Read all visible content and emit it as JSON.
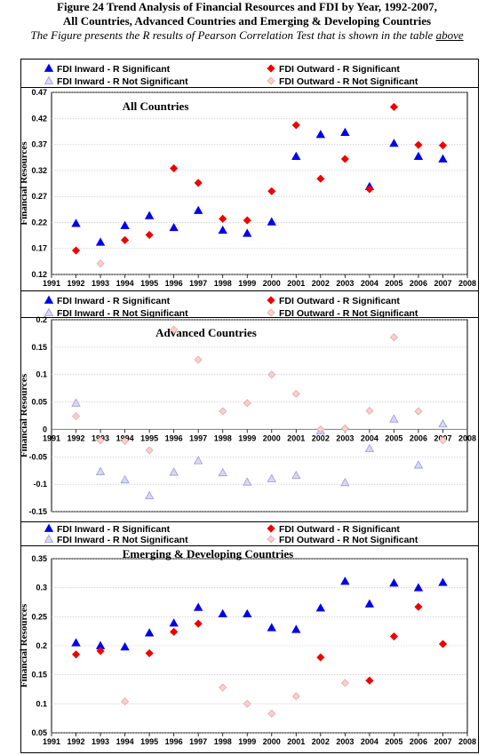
{
  "figure": {
    "title_line1": "Figure 24 Trend Analysis of Financial Resources and FDI by Year, 1992-2007,",
    "title_line2": "All Countries, Advanced Countries and Emerging & Developing Countries",
    "caption": "The Figure presents the R results of Pearson Correlation Test that is shown in the table",
    "caption_link": "above"
  },
  "colors": {
    "inward_sig": "#0000ee",
    "outward_sig": "#ee0000",
    "inward_nonsig": "#9999dd",
    "outward_nonsig": "#e8a8a8",
    "plot_bg": "#ffffff",
    "border": "#000000",
    "grid": "#c0c0c0"
  },
  "chart_data": [
    {
      "type": "scatter",
      "title": "All Countries",
      "ylabel": "Financial Resources",
      "xlabel": "",
      "xlim": [
        1991,
        2008
      ],
      "ylim": [
        0.12,
        0.47
      ],
      "yticks": [
        "0.47",
        "0.42",
        "0.37",
        "0.32",
        "0.27",
        "0.22",
        "0.17",
        "0.12"
      ],
      "xticks": [
        "1991",
        "1992",
        "1993",
        "1994",
        "1995",
        "1996",
        "1997",
        "1998",
        "1999",
        "2000",
        "2001",
        "2002",
        "2003",
        "2004",
        "2005",
        "2006",
        "2007",
        "2008"
      ],
      "grid": true,
      "legend": [
        "FDI Inward - R Significant",
        "FDI Outward - R Significant",
        "FDI Inward - R Not Significant",
        "FDI Outward - R Not Significant"
      ],
      "legend_position": "top",
      "series": [
        {
          "key": "inward_sig",
          "name": "FDI Inward - R Significant",
          "marker": "triangle",
          "points": [
            [
              1992,
              0.218
            ],
            [
              1993,
              0.182
            ],
            [
              1994,
              0.214
            ],
            [
              1995,
              0.233
            ],
            [
              1996,
              0.21
            ],
            [
              1997,
              0.243
            ],
            [
              1998,
              0.205
            ],
            [
              1999,
              0.199
            ],
            [
              2000,
              0.221
            ],
            [
              2001,
              0.347
            ],
            [
              2002,
              0.389
            ],
            [
              2003,
              0.393
            ],
            [
              2004,
              0.289
            ],
            [
              2005,
              0.372
            ],
            [
              2006,
              0.347
            ],
            [
              2007,
              0.342
            ]
          ]
        },
        {
          "key": "outward_sig",
          "name": "FDI Outward - R Significant",
          "marker": "diamond",
          "points": [
            [
              1992,
              0.166
            ],
            [
              1993,
              null
            ],
            [
              1994,
              0.186
            ],
            [
              1995,
              0.196
            ],
            [
              1996,
              0.324
            ],
            [
              1997,
              0.296
            ],
            [
              1998,
              0.227
            ],
            [
              1999,
              0.224
            ],
            [
              2000,
              0.28
            ],
            [
              2001,
              0.407
            ],
            [
              2002,
              0.304
            ],
            [
              2003,
              0.342
            ],
            [
              2004,
              0.284
            ],
            [
              2005,
              0.442
            ],
            [
              2006,
              0.369
            ],
            [
              2007,
              0.368
            ]
          ]
        },
        {
          "key": "inward_nonsig",
          "name": "FDI Inward - R Not Significant",
          "marker": "triangle",
          "points": []
        },
        {
          "key": "outward_nonsig",
          "name": "FDI Outward - R Not Significant",
          "marker": "diamond",
          "points": [
            [
              1993,
              0.141
            ]
          ]
        }
      ]
    },
    {
      "type": "scatter",
      "title": "Advanced Countries",
      "ylabel": "Financial Resources",
      "xlabel": "",
      "xlim": [
        1991,
        2008
      ],
      "ylim": [
        -0.15,
        0.2
      ],
      "yticks": [
        "0.2",
        "0.15",
        "0.1",
        "0.05",
        "0",
        "-0.05",
        "-0.1",
        "-0.15"
      ],
      "xticks": [
        "1991",
        "1992",
        "1993",
        "1994",
        "1995",
        "1996",
        "1997",
        "1998",
        "1999",
        "2000",
        "2001",
        "2002",
        "2003",
        "2004",
        "2005",
        "2006",
        "2007",
        "2008"
      ],
      "grid": true,
      "legend": [
        "FDI Inward - R Significant",
        "FDI Outward - R Significant",
        "FDI Inward - R Not Significant",
        "FDI Outward - R Not Significant"
      ],
      "legend_position": "top",
      "series": [
        {
          "key": "inward_sig",
          "name": "FDI Inward - R Significant",
          "marker": "triangle",
          "points": []
        },
        {
          "key": "outward_sig",
          "name": "FDI Outward - R Significant",
          "marker": "diamond",
          "points": []
        },
        {
          "key": "inward_nonsig",
          "name": "FDI Inward - R Not Significant",
          "marker": "triangle",
          "points": [
            [
              1992,
              0.048
            ],
            [
              1993,
              -0.077
            ],
            [
              1994,
              -0.092
            ],
            [
              1995,
              -0.121
            ],
            [
              1996,
              -0.078
            ],
            [
              1997,
              -0.057
            ],
            [
              1998,
              -0.079
            ],
            [
              1999,
              -0.096
            ],
            [
              2000,
              -0.09
            ],
            [
              2001,
              -0.084
            ],
            [
              2002,
              -0.003
            ],
            [
              2003,
              -0.097
            ],
            [
              2004,
              -0.035
            ],
            [
              2005,
              0.019
            ],
            [
              2006,
              -0.065
            ],
            [
              2007,
              0.01
            ]
          ]
        },
        {
          "key": "outward_nonsig",
          "name": "FDI Outward - R Not Significant",
          "marker": "diamond",
          "points": [
            [
              1992,
              0.024
            ],
            [
              1993,
              -0.02
            ],
            [
              1994,
              -0.021
            ],
            [
              1995,
              -0.038
            ],
            [
              1996,
              0.182
            ],
            [
              1997,
              0.127
            ],
            [
              1998,
              0.033
            ],
            [
              1999,
              0.048
            ],
            [
              2000,
              0.1
            ],
            [
              2001,
              0.065
            ],
            [
              2002,
              0.0
            ],
            [
              2003,
              0.002
            ],
            [
              2004,
              0.034
            ],
            [
              2005,
              0.168
            ],
            [
              2006,
              0.033
            ],
            [
              2007,
              -0.02
            ]
          ]
        }
      ]
    },
    {
      "type": "scatter",
      "title": "Emerging & Developing Countries",
      "ylabel": "Financial Resources",
      "xlabel": "",
      "xlim": [
        1991,
        2008
      ],
      "ylim": [
        0.05,
        0.35
      ],
      "yticks": [
        "0.35",
        "0.3",
        "0.25",
        "0.2",
        "0.15",
        "0.1",
        "0.05"
      ],
      "xticks": [
        "1991",
        "1992",
        "1993",
        "1994",
        "1995",
        "1996",
        "1997",
        "1998",
        "1999",
        "2000",
        "2001",
        "2002",
        "2003",
        "2004",
        "2005",
        "2006",
        "2007",
        "2008"
      ],
      "grid": true,
      "legend": [
        "FDI Inward - R Significant",
        "FDI Outward - R Significant",
        "FDI Inward - R Not Significant",
        "FDI Outward - R Not Significant"
      ],
      "legend_position": "top",
      "series": [
        {
          "key": "inward_sig",
          "name": "FDI Inward - R Significant",
          "marker": "triangle",
          "points": [
            [
              1992,
              0.205
            ],
            [
              1993,
              0.2
            ],
            [
              1994,
              0.198
            ],
            [
              1995,
              0.222
            ],
            [
              1996,
              0.239
            ],
            [
              1997,
              0.266
            ],
            [
              1998,
              0.255
            ],
            [
              1999,
              0.255
            ],
            [
              2000,
              0.231
            ],
            [
              2001,
              0.228
            ],
            [
              2002,
              0.265
            ],
            [
              2003,
              0.311
            ],
            [
              2004,
              0.272
            ],
            [
              2005,
              0.308
            ],
            [
              2006,
              0.3
            ],
            [
              2007,
              0.309
            ]
          ]
        },
        {
          "key": "outward_sig",
          "name": "FDI Outward - R Significant",
          "marker": "diamond",
          "points": [
            [
              1992,
              0.185
            ],
            [
              1993,
              0.191
            ],
            [
              1995,
              0.187
            ],
            [
              1996,
              0.224
            ],
            [
              1997,
              0.238
            ],
            [
              2002,
              0.18
            ],
            [
              2004,
              0.14
            ],
            [
              2005,
              0.216
            ],
            [
              2006,
              0.267
            ],
            [
              2007,
              0.203
            ]
          ]
        },
        {
          "key": "inward_nonsig",
          "name": "FDI Inward - R Not Significant",
          "marker": "triangle",
          "points": []
        },
        {
          "key": "outward_nonsig",
          "name": "FDI Outward - R Not Significant",
          "marker": "diamond",
          "points": [
            [
              1994,
              0.104
            ],
            [
              1998,
              0.128
            ],
            [
              1999,
              0.1
            ],
            [
              2000,
              0.083
            ],
            [
              2001,
              0.113
            ],
            [
              2003,
              0.136
            ]
          ]
        }
      ]
    }
  ]
}
